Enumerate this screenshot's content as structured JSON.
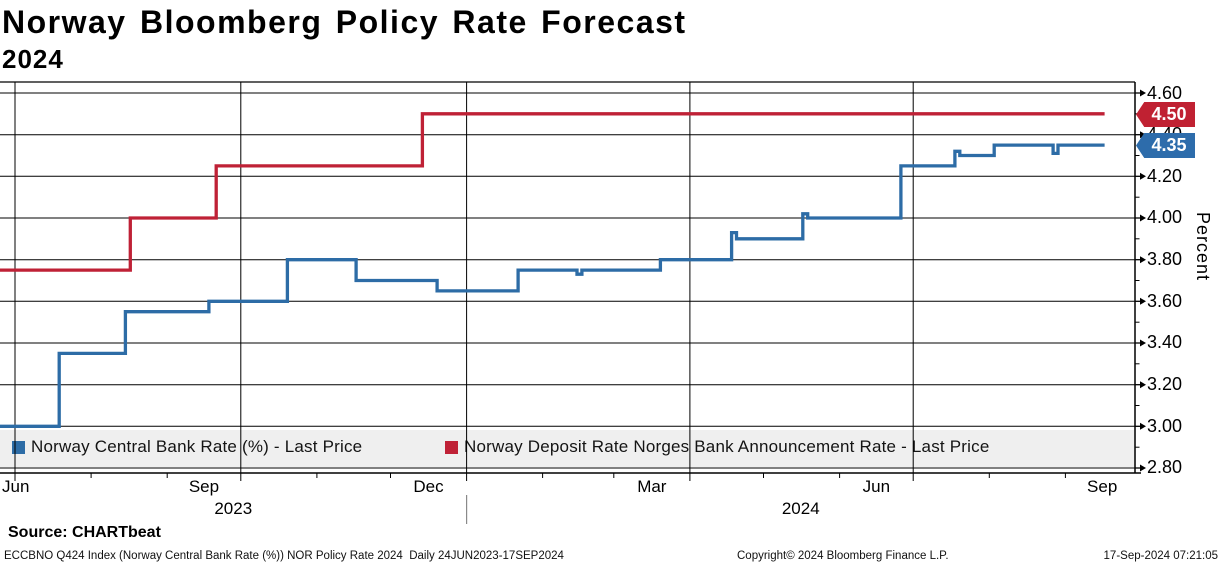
{
  "header": {
    "title": "Norway Bloomberg Policy Rate Forecast",
    "subtitle": "2024"
  },
  "y_axis": {
    "label": "Percent",
    "tick_labels": [
      "4.60",
      "4.40",
      "4.20",
      "4.00",
      "3.80",
      "3.60",
      "3.40",
      "3.20",
      "3.00",
      "2.80"
    ]
  },
  "x_axis": {
    "month_labels": [
      "Jun",
      "Sep",
      "Dec",
      "Mar",
      "Jun",
      "Sep"
    ],
    "years": [
      "2023",
      "2024"
    ]
  },
  "price_badges": [
    {
      "label": "4.50",
      "color": "#c02132",
      "series": "Norway Deposit Rate Norges Bank Announcement Rate"
    },
    {
      "label": "4.35",
      "color": "#2d6cab",
      "series": "Norway Central Bank Rate (%)"
    }
  ],
  "legend": [
    {
      "label": "Norway Central Bank Rate (%) - Last Price",
      "color": "#2d6ca6"
    },
    {
      "label": "Norway Deposit Rate Norges Bank Announcement Rate - Last Price",
      "color": "#bf2136"
    }
  ],
  "source_line": "Source: CHARTbeat",
  "footer": {
    "left": "ECCBNO Q424 Index (Norway Central Bank Rate (%)) NOR Policy Rate 2024  Daily 24JUN2023-17SEP2024",
    "center": "Copyright© 2024 Bloomberg Finance L.P.",
    "right": "17-Sep-2024 07:21:05"
  },
  "chart_data": {
    "type": "line",
    "step": true,
    "title": "Norway Bloomberg Policy Rate Forecast 2024",
    "ylabel": "Percent",
    "ylim": [
      2.78,
      4.65
    ],
    "ytick_step": 0.2,
    "x_range": [
      "2023-06-24",
      "2024-09-17"
    ],
    "grid": true,
    "legend_position": "bottom",
    "series": [
      {
        "name": "Norway Central Bank Rate (%) - Last Price",
        "color": "#2d6ca6",
        "points": [
          [
            "2023-06-24",
            3.0
          ],
          [
            "2023-07-19",
            3.35
          ],
          [
            "2023-08-15",
            3.55
          ],
          [
            "2023-09-18",
            3.6
          ],
          [
            "2023-10-20",
            3.8
          ],
          [
            "2023-11-17",
            3.7
          ],
          [
            "2023-12-20",
            3.65
          ],
          [
            "2024-01-22",
            3.75
          ],
          [
            "2024-02-15",
            3.73
          ],
          [
            "2024-02-17",
            3.75
          ],
          [
            "2024-03-20",
            3.8
          ],
          [
            "2024-04-18",
            3.93
          ],
          [
            "2024-04-20",
            3.9
          ],
          [
            "2024-05-17",
            4.02
          ],
          [
            "2024-05-19",
            4.0
          ],
          [
            "2024-06-26",
            4.25
          ],
          [
            "2024-07-18",
            4.32
          ],
          [
            "2024-07-20",
            4.3
          ],
          [
            "2024-08-03",
            4.35
          ],
          [
            "2024-08-27",
            4.31
          ],
          [
            "2024-08-29",
            4.35
          ],
          [
            "2024-09-17",
            4.35
          ]
        ]
      },
      {
        "name": "Norway Deposit Rate Norges Bank Announcement Rate - Last Price",
        "color": "#bf2136",
        "points": [
          [
            "2023-06-24",
            3.75
          ],
          [
            "2023-08-17",
            4.0
          ],
          [
            "2023-09-21",
            4.25
          ],
          [
            "2023-12-14",
            4.5
          ],
          [
            "2024-09-17",
            4.5
          ]
        ]
      }
    ]
  }
}
